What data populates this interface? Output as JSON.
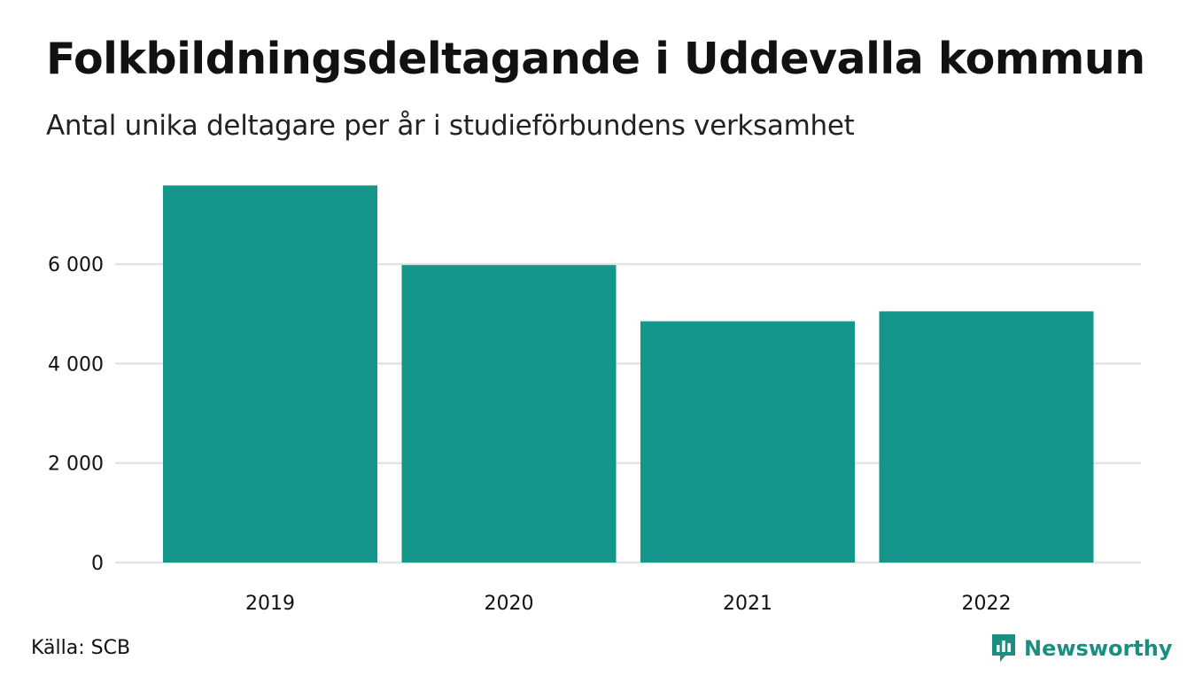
{
  "header": {
    "title": "Folkbildningsdeltagande i Uddevalla kommun",
    "subtitle": "Antal unika deltagare per år i studieförbundens verksamhet"
  },
  "footer": {
    "source": "Källa: SCB",
    "brand": "Newsworthy"
  },
  "colors": {
    "bar": "#14968a",
    "grid": "#e3e3e3",
    "brand": "#1a8f80"
  },
  "icons": {
    "brand_logo": "speech-bubble-bar-chart-icon"
  },
  "chart_data": {
    "type": "bar",
    "categories": [
      "2019",
      "2020",
      "2021",
      "2022"
    ],
    "values": [
      7580,
      5980,
      4850,
      5050
    ],
    "ylim": [
      0,
      7800
    ],
    "yticks": [
      0,
      2000,
      4000,
      6000
    ],
    "ytick_labels": [
      "0",
      "2 000",
      "4 000",
      "6 000"
    ],
    "xlabel": "",
    "ylabel": "",
    "grid": true,
    "legend": "none"
  }
}
